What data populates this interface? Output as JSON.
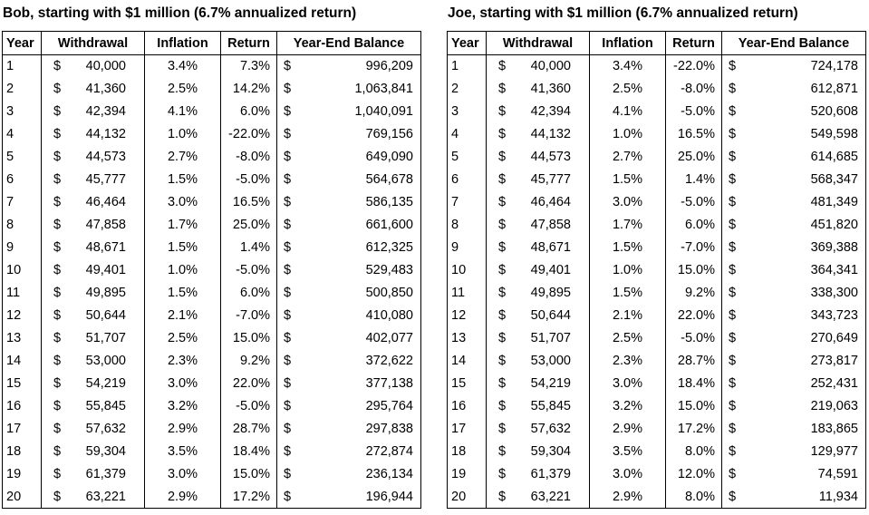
{
  "chart_data": [
    {
      "type": "table",
      "title": "Bob, starting with $1 million (6.7% annualized return)",
      "columns": [
        "Year",
        "Withdrawal",
        "Inflation",
        "Return",
        "Year-End Balance"
      ],
      "currency": "$",
      "rows": [
        [
          "1",
          "40,000",
          "3.4%",
          "7.3%",
          "996,209"
        ],
        [
          "2",
          "41,360",
          "2.5%",
          "14.2%",
          "1,063,841"
        ],
        [
          "3",
          "42,394",
          "4.1%",
          "6.0%",
          "1,040,091"
        ],
        [
          "4",
          "44,132",
          "1.0%",
          "-22.0%",
          "769,156"
        ],
        [
          "5",
          "44,573",
          "2.7%",
          "-8.0%",
          "649,090"
        ],
        [
          "6",
          "45,777",
          "1.5%",
          "-5.0%",
          "564,678"
        ],
        [
          "7",
          "46,464",
          "3.0%",
          "16.5%",
          "586,135"
        ],
        [
          "8",
          "47,858",
          "1.7%",
          "25.0%",
          "661,600"
        ],
        [
          "9",
          "48,671",
          "1.5%",
          "1.4%",
          "612,325"
        ],
        [
          "10",
          "49,401",
          "1.0%",
          "-5.0%",
          "529,483"
        ],
        [
          "11",
          "49,895",
          "1.5%",
          "6.0%",
          "500,850"
        ],
        [
          "12",
          "50,644",
          "2.1%",
          "-7.0%",
          "410,080"
        ],
        [
          "13",
          "51,707",
          "2.5%",
          "15.0%",
          "402,077"
        ],
        [
          "14",
          "53,000",
          "2.3%",
          "9.2%",
          "372,622"
        ],
        [
          "15",
          "54,219",
          "3.0%",
          "22.0%",
          "377,138"
        ],
        [
          "16",
          "55,845",
          "3.2%",
          "-5.0%",
          "295,764"
        ],
        [
          "17",
          "57,632",
          "2.9%",
          "28.7%",
          "297,838"
        ],
        [
          "18",
          "59,304",
          "3.5%",
          "18.4%",
          "272,874"
        ],
        [
          "19",
          "61,379",
          "3.0%",
          "15.0%",
          "236,134"
        ],
        [
          "20",
          "63,221",
          "2.9%",
          "17.2%",
          "196,944"
        ]
      ]
    },
    {
      "type": "table",
      "title": "Joe, starting with $1 million (6.7% annualized return)",
      "columns": [
        "Year",
        "Withdrawal",
        "Inflation",
        "Return",
        "Year-End Balance"
      ],
      "currency": "$",
      "rows": [
        [
          "1",
          "40,000",
          "3.4%",
          "-22.0%",
          "724,178"
        ],
        [
          "2",
          "41,360",
          "2.5%",
          "-8.0%",
          "612,871"
        ],
        [
          "3",
          "42,394",
          "4.1%",
          "-5.0%",
          "520,608"
        ],
        [
          "4",
          "44,132",
          "1.0%",
          "16.5%",
          "549,598"
        ],
        [
          "5",
          "44,573",
          "2.7%",
          "25.0%",
          "614,685"
        ],
        [
          "6",
          "45,777",
          "1.5%",
          "1.4%",
          "568,347"
        ],
        [
          "7",
          "46,464",
          "3.0%",
          "-5.0%",
          "481,349"
        ],
        [
          "8",
          "47,858",
          "1.7%",
          "6.0%",
          "451,820"
        ],
        [
          "9",
          "48,671",
          "1.5%",
          "-7.0%",
          "369,388"
        ],
        [
          "10",
          "49,401",
          "1.0%",
          "15.0%",
          "364,341"
        ],
        [
          "11",
          "49,895",
          "1.5%",
          "9.2%",
          "338,300"
        ],
        [
          "12",
          "50,644",
          "2.1%",
          "22.0%",
          "343,723"
        ],
        [
          "13",
          "51,707",
          "2.5%",
          "-5.0%",
          "270,649"
        ],
        [
          "14",
          "53,000",
          "2.3%",
          "28.7%",
          "273,817"
        ],
        [
          "15",
          "54,219",
          "3.0%",
          "18.4%",
          "252,431"
        ],
        [
          "16",
          "55,845",
          "3.2%",
          "15.0%",
          "219,063"
        ],
        [
          "17",
          "57,632",
          "2.9%",
          "17.2%",
          "183,865"
        ],
        [
          "18",
          "59,304",
          "3.5%",
          "8.0%",
          "129,977"
        ],
        [
          "19",
          "61,379",
          "3.0%",
          "12.0%",
          "74,591"
        ],
        [
          "20",
          "63,221",
          "2.9%",
          "8.0%",
          "11,934"
        ]
      ]
    }
  ]
}
